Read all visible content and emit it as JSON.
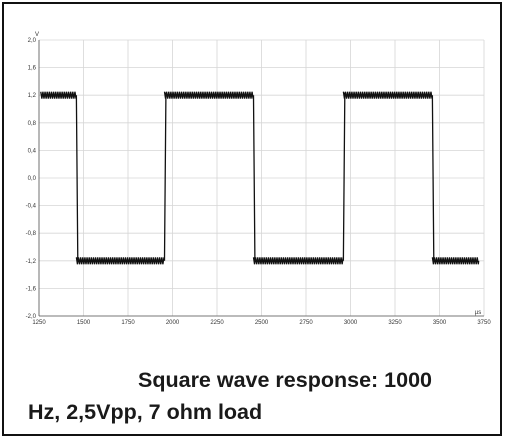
{
  "caption": {
    "line1": "Square wave response: 1000",
    "line2": "Hz, 2,5Vpp, 7 ohm load"
  },
  "colors": {
    "trace": "#111111",
    "grid": "#d6d6d6",
    "axis": "#555555",
    "border": "#111111"
  },
  "chart_data": {
    "type": "line",
    "title": "",
    "xlabel": "µs",
    "ylabel": "V",
    "xlim": [
      1250,
      3750
    ],
    "ylim": [
      -2.0,
      2.0
    ],
    "x_ticks": [
      "1250",
      "1500",
      "1750",
      "2000",
      "2250",
      "2500",
      "2750",
      "3000",
      "3250",
      "3500",
      "3750"
    ],
    "y_ticks": [
      "2,0",
      "1,6",
      "1,2",
      "0,8",
      "0,4",
      "0,0",
      "-0,4",
      "-0,8",
      "-1,2",
      "-1,6",
      "-2,0"
    ],
    "grid": true,
    "series": [
      {
        "high_level": 1.2,
        "low_level": -1.2,
        "ringing_amplitude": 0.05,
        "transitions": [
          {
            "x": 1460,
            "to": "low"
          },
          {
            "x": 1955,
            "to": "high"
          },
          {
            "x": 2455,
            "to": "low"
          },
          {
            "x": 2960,
            "to": "high"
          },
          {
            "x": 3460,
            "to": "low"
          }
        ],
        "x_start": 1260,
        "x_end": 3720,
        "start_level": "high"
      }
    ]
  }
}
